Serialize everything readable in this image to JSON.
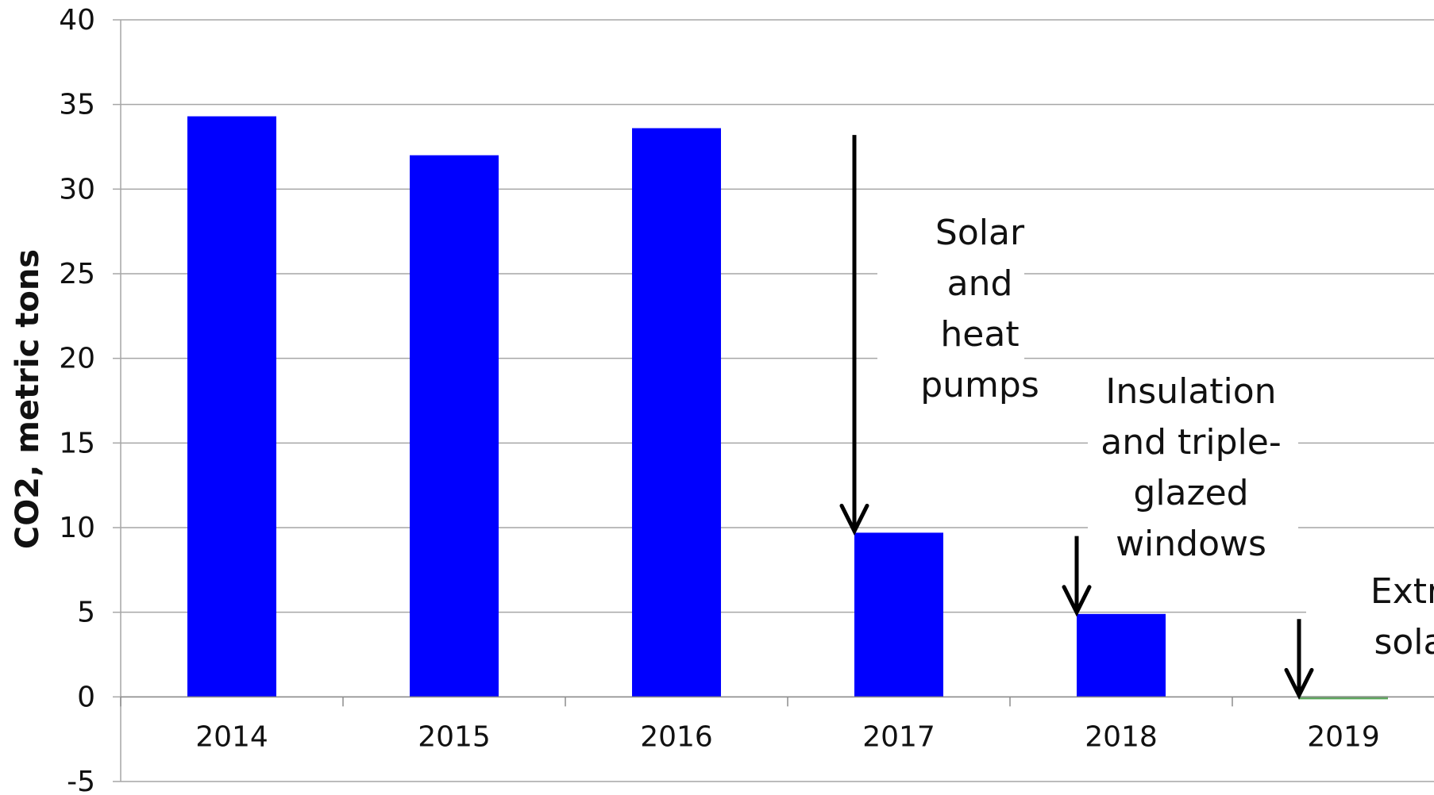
{
  "chart_data": {
    "type": "bar",
    "categories": [
      "2014",
      "2015",
      "2016",
      "2017",
      "2018",
      "2019"
    ],
    "values": [
      34.3,
      32.0,
      33.6,
      9.7,
      4.9,
      0.0
    ],
    "ylabel": "CO2, metric tons",
    "ylim": [
      -5,
      40
    ],
    "yticks": [
      -5,
      0,
      5,
      10,
      15,
      20,
      25,
      30,
      35,
      40
    ],
    "grid": true,
    "colors": {
      "bar": "#0000ff",
      "zero_bar": "#5aa95a",
      "grid": "#a6a6a6",
      "arrow": "#000000"
    },
    "annotations": [
      {
        "category": "2017",
        "lines": [
          "Solar",
          "and",
          "heat",
          "pumps"
        ],
        "arrow_from": 33.2,
        "arrow_to": 9.7
      },
      {
        "category": "2018",
        "lines": [
          "Insulation",
          "and triple-",
          "glazed",
          "windows"
        ],
        "arrow_from": 9.5,
        "arrow_to": 4.9
      },
      {
        "category": "2019",
        "lines": [
          "Extra",
          "solar"
        ],
        "arrow_from": 4.6,
        "arrow_to": 0.0
      }
    ]
  }
}
